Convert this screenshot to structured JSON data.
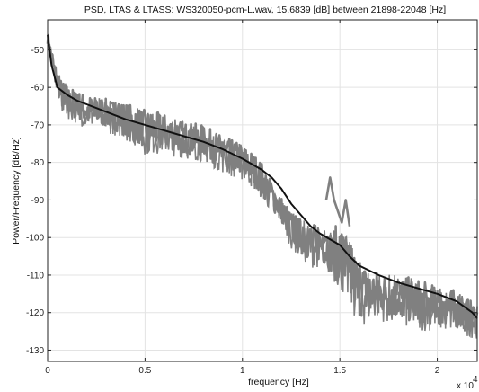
{
  "chart_data": {
    "type": "line",
    "title": "PSD, LTAS & LTASS: WS320050-pcm-L.wav, 15.6839 [dB] between 21898-22048 [Hz]",
    "xlabel": "frequency [Hz]",
    "ylabel": "Power/Frequency [dB/Hz]",
    "x_exponent_label": "x 10",
    "x_exponent_value": "4",
    "xlim": [
      0,
      22050
    ],
    "ylim": [
      -133,
      -42
    ],
    "x_ticks": [
      0,
      5000,
      10000,
      15000,
      20000
    ],
    "x_tick_labels": [
      "0",
      "0.5",
      "1",
      "1.5",
      "2"
    ],
    "y_ticks": [
      -50,
      -60,
      -70,
      -80,
      -90,
      -100,
      -110,
      -120,
      -130
    ],
    "y_tick_labels": [
      "-50",
      "-60",
      "-70",
      "-80",
      "-90",
      "-100",
      "-110",
      "-120",
      "-130"
    ],
    "grid": true,
    "series": [
      {
        "role": "psd-band",
        "color": "#808080",
        "x": [
          0,
          300,
          700,
          1200,
          2000,
          3000,
          4000,
          5000,
          6000,
          7000,
          8000,
          9000,
          10000,
          10500,
          11000,
          11500,
          12000,
          12500,
          13000,
          13500,
          14000,
          14500,
          15000,
          15500,
          16000,
          16500,
          17000,
          18000,
          19000,
          20000,
          21000,
          22050
        ],
        "upper": [
          -45,
          -52,
          -58,
          -60,
          -62,
          -63,
          -64,
          -66,
          -67,
          -69,
          -70,
          -73,
          -75,
          -77,
          -80,
          -85,
          -89,
          -93,
          -95,
          -96,
          -97,
          -98,
          -96,
          -101,
          -106,
          -108,
          -109,
          -110,
          -111,
          -113,
          -114,
          -118
        ],
        "lower": [
          -49,
          -58,
          -67,
          -69,
          -71,
          -72,
          -74,
          -78,
          -78,
          -79,
          -80,
          -83,
          -85,
          -87,
          -90,
          -94,
          -97,
          -103,
          -106,
          -108,
          -108,
          -111,
          -114,
          -119,
          -124,
          -123,
          -122,
          -124,
          -125,
          -125,
          -126,
          -127
        ]
      },
      {
        "role": "ltass",
        "color": "#111111",
        "x": [
          0,
          200,
          500,
          1000,
          1500,
          2000,
          3000,
          4000,
          5000,
          6000,
          7000,
          8000,
          9000,
          10000,
          11000,
          11500,
          12000,
          12500,
          13000,
          13500,
          14000,
          14500,
          15000,
          15500,
          16000,
          17000,
          18000,
          19000,
          20000,
          21000,
          21800,
          22050
        ],
        "y": [
          -46,
          -54,
          -60,
          -62,
          -63.5,
          -64.5,
          -66.5,
          -68.5,
          -70,
          -71.5,
          -73,
          -74.5,
          -76.5,
          -79,
          -82,
          -84,
          -87,
          -91,
          -94,
          -97,
          -99,
          -100.5,
          -102,
          -105,
          -107.5,
          -110,
          -112,
          -113.5,
          -115,
          -117,
          -120,
          -121.5
        ]
      },
      {
        "role": "ltas-peaks",
        "color": "#808080",
        "x": [
          14300,
          14500,
          14700,
          15100,
          15300,
          15500
        ],
        "y": [
          -90,
          -84,
          -90,
          -96,
          -90,
          -97
        ]
      }
    ]
  }
}
